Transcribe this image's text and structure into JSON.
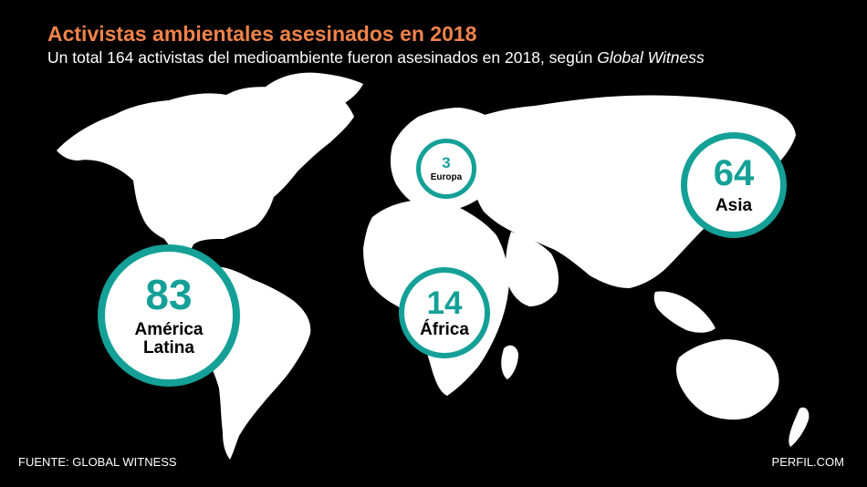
{
  "header": {
    "title": "Activistas ambientales asesinados en 2018",
    "subtitle_main": "Un total 164 activistas del medioambiente fueron asesinados en 2018, según ",
    "subtitle_source": "Global Witness"
  },
  "regions": [
    {
      "id": "america-latina",
      "value": "83",
      "label_line1": "América",
      "label_line2": "Latina"
    },
    {
      "id": "asia",
      "value": "64",
      "label_line1": "Asia"
    },
    {
      "id": "africa",
      "value": "14",
      "label_line1": "África"
    },
    {
      "id": "europa",
      "value": "3",
      "label_line1": "Europa"
    }
  ],
  "footer": {
    "source": "FUENTE: GLOBAL WITNESS",
    "brand": "PERFIL.COM"
  },
  "colors": {
    "background": "#000000",
    "land": "#ffffff",
    "accent": "#14a097",
    "title": "#f0834b"
  }
}
